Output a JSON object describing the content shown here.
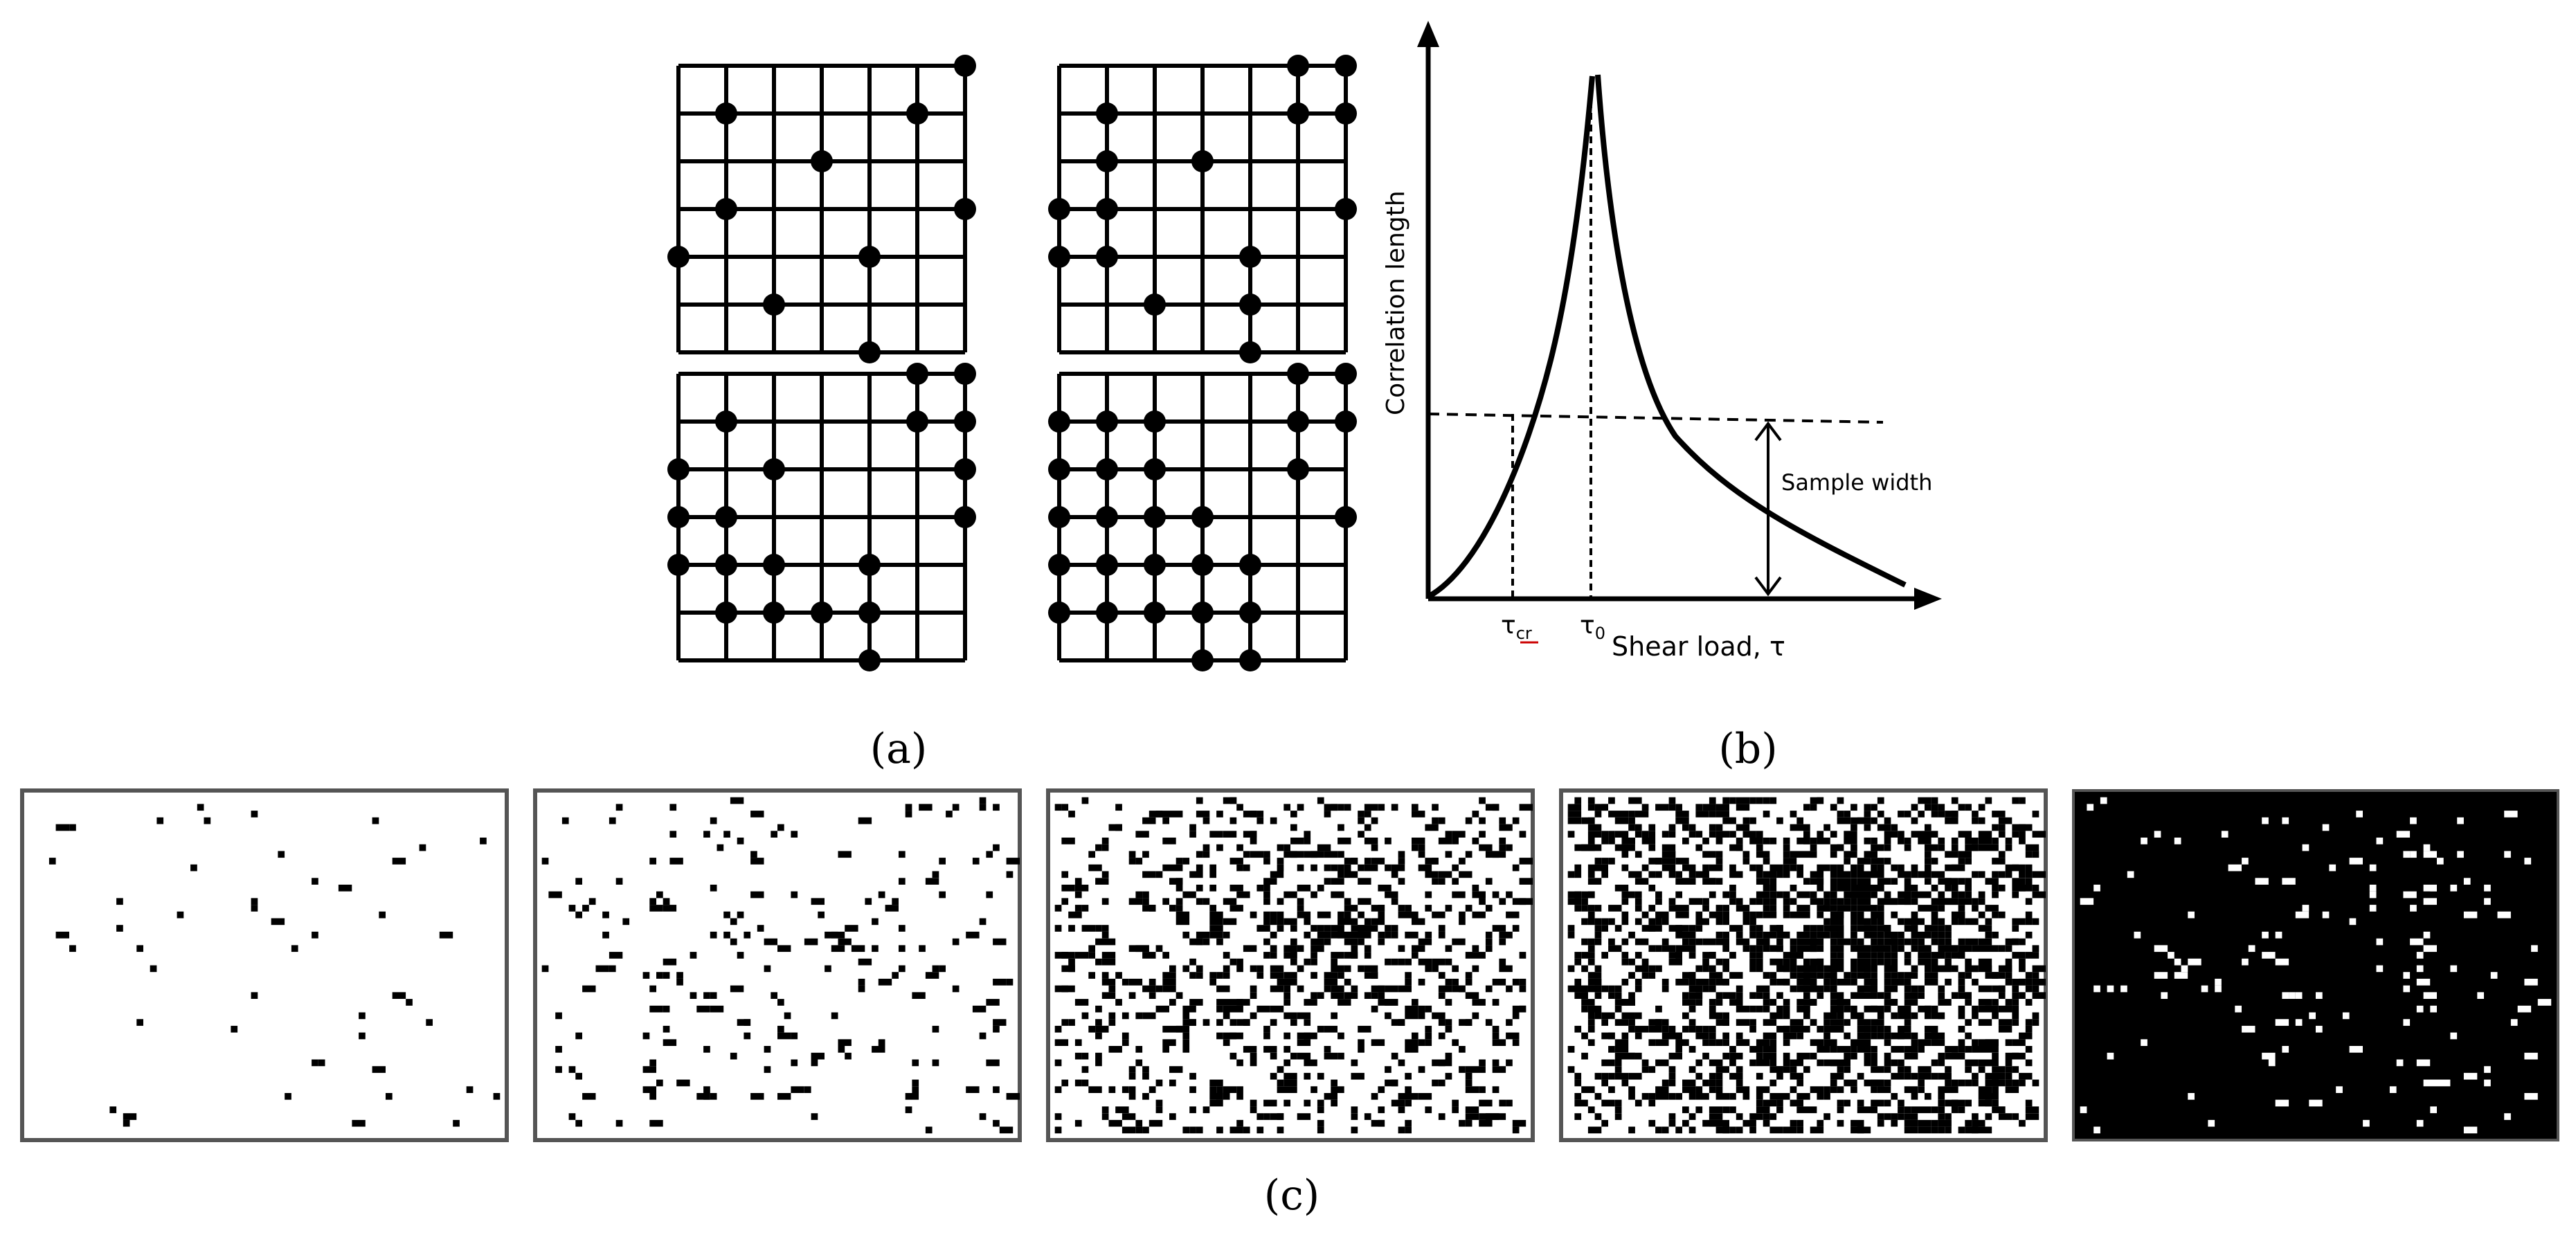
{
  "panels": {
    "a": {
      "label": "(a)"
    },
    "b": {
      "label": "(b)"
    },
    "c": {
      "label": "(c)"
    }
  },
  "lattice_grids": [
    {
      "position": "top-left",
      "sites": [
        [
          6,
          0
        ],
        [
          1,
          1
        ],
        [
          5,
          1
        ],
        [
          3,
          2
        ],
        [
          1,
          3
        ],
        [
          6,
          3
        ],
        [
          0,
          4
        ],
        [
          4,
          4
        ],
        [
          2,
          5
        ],
        [
          4,
          6
        ]
      ]
    },
    {
      "position": "top-right",
      "sites": [
        [
          5,
          0
        ],
        [
          6,
          0
        ],
        [
          1,
          1
        ],
        [
          5,
          1
        ],
        [
          6,
          1
        ],
        [
          1,
          2
        ],
        [
          3,
          2
        ],
        [
          0,
          3
        ],
        [
          1,
          3
        ],
        [
          6,
          3
        ],
        [
          0,
          4
        ],
        [
          1,
          4
        ],
        [
          4,
          4
        ],
        [
          2,
          5
        ],
        [
          4,
          5
        ],
        [
          4,
          6
        ]
      ]
    },
    {
      "position": "bottom-left",
      "sites": [
        [
          5,
          0
        ],
        [
          6,
          0
        ],
        [
          1,
          1
        ],
        [
          5,
          1
        ],
        [
          6,
          1
        ],
        [
          0,
          2
        ],
        [
          2,
          2
        ],
        [
          6,
          2
        ],
        [
          0,
          3
        ],
        [
          1,
          3
        ],
        [
          6,
          3
        ],
        [
          0,
          4
        ],
        [
          1,
          4
        ],
        [
          2,
          4
        ],
        [
          4,
          4
        ],
        [
          1,
          5
        ],
        [
          2,
          5
        ],
        [
          3,
          5
        ],
        [
          4,
          5
        ],
        [
          4,
          6
        ]
      ]
    },
    {
      "position": "bottom-right",
      "sites": [
        [
          5,
          0
        ],
        [
          6,
          0
        ],
        [
          0,
          1
        ],
        [
          1,
          1
        ],
        [
          2,
          1
        ],
        [
          5,
          1
        ],
        [
          6,
          1
        ],
        [
          0,
          2
        ],
        [
          1,
          2
        ],
        [
          2,
          2
        ],
        [
          5,
          2
        ],
        [
          0,
          3
        ],
        [
          1,
          3
        ],
        [
          2,
          3
        ],
        [
          3,
          3
        ],
        [
          6,
          3
        ],
        [
          0,
          4
        ],
        [
          1,
          4
        ],
        [
          2,
          4
        ],
        [
          3,
          4
        ],
        [
          4,
          4
        ],
        [
          0,
          5
        ],
        [
          1,
          5
        ],
        [
          2,
          5
        ],
        [
          3,
          5
        ],
        [
          4,
          5
        ],
        [
          3,
          6
        ],
        [
          4,
          6
        ]
      ]
    }
  ],
  "chart_data": {
    "type": "line",
    "ylabel": "Correlation length",
    "xlabel": "Shear load, τ",
    "tick_labels": {
      "tau_cr": "τ",
      "tau_cr_sub": "cr",
      "tau_0": "τ",
      "tau_0_sub": "0"
    },
    "annotation": "Sample width",
    "curve": "correlation length diverges at τ0; dashed horizontal line marks sample width, crossing curve at τcr"
  },
  "simulation_frames": [
    {
      "index": 1,
      "background": "white",
      "density": 0.012
    },
    {
      "index": 2,
      "background": "white",
      "density": 0.07
    },
    {
      "index": 3,
      "background": "white",
      "density": 0.27
    },
    {
      "index": 4,
      "background": "white",
      "density": 0.52
    },
    {
      "index": 5,
      "background": "black",
      "density": 0.05
    }
  ],
  "colors": {
    "ink": "#000000",
    "frame": "#555555",
    "paper": "#ffffff",
    "underline": "#cc0000"
  }
}
